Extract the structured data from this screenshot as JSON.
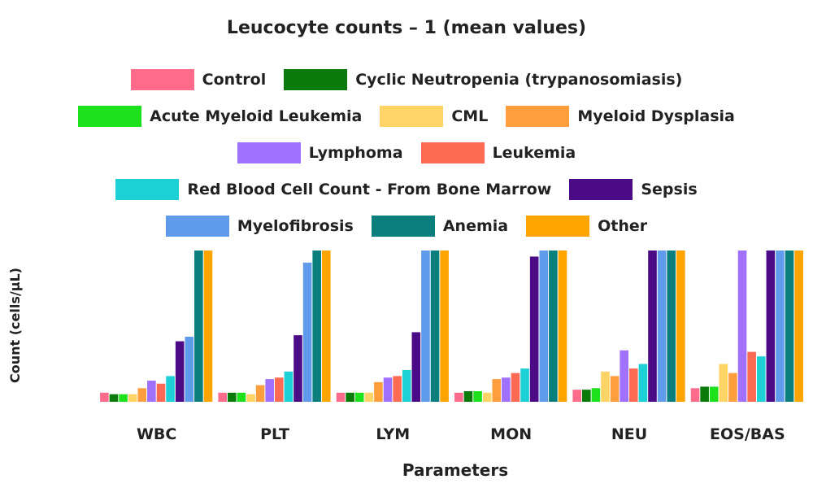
{
  "chart_data": {
    "type": "bar",
    "title": "Leucocyte counts – 1 (mean values)",
    "xlabel": "Parameters",
    "ylabel": "Count (cells/µL)",
    "categories": [
      "WBC",
      "PLT",
      "LYM",
      "MON",
      "NEU",
      "EOS/BAS"
    ],
    "ylim": [
      0,
      100
    ],
    "series": [
      {
        "name": "Control",
        "color": "#ff6b8b",
        "values": [
          6,
          6,
          6,
          6,
          8,
          9
        ]
      },
      {
        "name": "Cyclic Neutropenia (trypanosomiasis)",
        "color": "#0a7a0a",
        "values": [
          5,
          6,
          6,
          7,
          8,
          10
        ]
      },
      {
        "name": "Acute Myeloid Leukemia",
        "color": "#1ee11e",
        "values": [
          5,
          6,
          6,
          7,
          9,
          10
        ]
      },
      {
        "name": "CML",
        "color": "#ffd466",
        "values": [
          5,
          5,
          6,
          6,
          20,
          25
        ]
      },
      {
        "name": "Myeloid Dysplasia",
        "color": "#ff9e3d",
        "values": [
          9,
          11,
          13,
          15,
          17,
          19
        ]
      },
      {
        "name": "Lymphoma",
        "color": "#a070ff",
        "values": [
          14,
          15,
          16,
          16,
          34,
          100
        ]
      },
      {
        "name": "Leukemia",
        "color": "#ff6a55",
        "values": [
          12,
          16,
          17,
          19,
          22,
          33
        ]
      },
      {
        "name": "Red Blood Cell Count - From Bone Marrow",
        "color": "#1cd0d6",
        "values": [
          17,
          20,
          21,
          22,
          25,
          30
        ]
      },
      {
        "name": "Sepsis",
        "color": "#4b0a86",
        "values": [
          40,
          44,
          46,
          96,
          100,
          100
        ]
      },
      {
        "name": "Myelofibrosis",
        "color": "#5f9aeb",
        "values": [
          43,
          92,
          100,
          100,
          100,
          100
        ]
      },
      {
        "name": "Anemia",
        "color": "#0b7e7e",
        "values": [
          100,
          100,
          100,
          100,
          100,
          100
        ]
      },
      {
        "name": "Other",
        "color": "#ffa400",
        "values": [
          100,
          100,
          100,
          100,
          100,
          100
        ]
      }
    ]
  },
  "legend_rows": [
    [
      0,
      1
    ],
    [
      2,
      3,
      4
    ],
    [
      5,
      6
    ],
    [
      7,
      8
    ],
    [
      9,
      10,
      11
    ]
  ]
}
